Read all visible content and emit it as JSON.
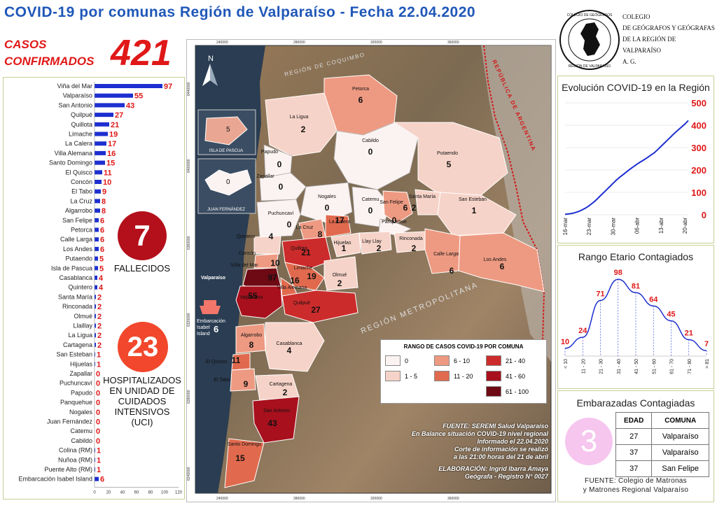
{
  "header": {
    "title": "COVID-19 por comunas Región de Valparaíso - Fecha 22.04.2020",
    "casos_label_1": "CASOS",
    "casos_label_2": "CONFIRMADOS",
    "casos_total": "421"
  },
  "logo": {
    "line1": "COLEGIO",
    "line2": "DE GEÓGRAFOS Y GEÓGRAFAS",
    "line3": "DE LA REGIÓN DE VALPARAÍSO",
    "line4": "A. G.",
    "seal_text": "COLEGIO DE GEÓGRAFOS REGIÓN DE VALPARAÍSO"
  },
  "comunas_bar": {
    "axis_ticks": [
      "0",
      "20",
      "40",
      "60",
      "80",
      "100",
      "120"
    ],
    "max": 120,
    "items": [
      {
        "name": "Viña del Mar",
        "value": 97
      },
      {
        "name": "Valparaíso",
        "value": 55
      },
      {
        "name": "San Antonio",
        "value": 43
      },
      {
        "name": "Quilpué",
        "value": 27
      },
      {
        "name": "Quillota",
        "value": 21
      },
      {
        "name": "Limache",
        "value": 19
      },
      {
        "name": "La Calera",
        "value": 17
      },
      {
        "name": "Villa Alemana",
        "value": 16
      },
      {
        "name": "Santo Domingo",
        "value": 15
      },
      {
        "name": "El Quisco",
        "value": 11
      },
      {
        "name": "Concón",
        "value": 10
      },
      {
        "name": "El Tabo",
        "value": 9
      },
      {
        "name": "La Cruz",
        "value": 8
      },
      {
        "name": "Algarrobo",
        "value": 8
      },
      {
        "name": "San Felipe",
        "value": 6
      },
      {
        "name": "Petorca",
        "value": 6
      },
      {
        "name": "Calle Larga",
        "value": 6
      },
      {
        "name": "Los Andes",
        "value": 6
      },
      {
        "name": "Putaendo",
        "value": 5
      },
      {
        "name": "Isla de Pascua",
        "value": 5
      },
      {
        "name": "Casablanca",
        "value": 4
      },
      {
        "name": "Quintero",
        "value": 4
      },
      {
        "name": "Santa María",
        "value": 2
      },
      {
        "name": "Rinconada",
        "value": 2
      },
      {
        "name": "Olmué",
        "value": 2
      },
      {
        "name": "Llaillay",
        "value": 2
      },
      {
        "name": "La Ligua",
        "value": 2
      },
      {
        "name": "Cartagena",
        "value": 2
      },
      {
        "name": "San Esteban",
        "value": 1
      },
      {
        "name": "Hijuelas",
        "value": 1
      },
      {
        "name": "Zapallar",
        "value": 0
      },
      {
        "name": "Puchuncaví",
        "value": 0
      },
      {
        "name": "Papudo",
        "value": 0
      },
      {
        "name": "Panquehue",
        "value": 0
      },
      {
        "name": "Nogales",
        "value": 0
      },
      {
        "name": "Juan Fernández",
        "value": 0
      },
      {
        "name": "Catemu",
        "value": 0
      },
      {
        "name": "Cabildo",
        "value": 0
      },
      {
        "name": "Colina (RM)",
        "value": 1
      },
      {
        "name": "Nuñoa (RM)",
        "value": 1
      },
      {
        "name": "Puente Alto (RM)",
        "value": 1
      },
      {
        "name": "Embarcación Isabel Island",
        "value": 6
      }
    ]
  },
  "fallecidos": {
    "value": "7",
    "label": "FALLECIDOS"
  },
  "uci": {
    "value": "23",
    "label_1": "HOSPITALIZADOS",
    "label_2": "EN UNIDAD DE",
    "label_3": "CUIDADOS",
    "label_4": "INTENSIVOS",
    "label_5": "(UCI)"
  },
  "map": {
    "legend_title": "RANGO DE CASOS COVID-19 POR COMUNA",
    "legend": [
      {
        "label": "0",
        "color": "#fbf3f1"
      },
      {
        "label": "1 - 5",
        "color": "#f6d3c8"
      },
      {
        "label": "6 - 10",
        "color": "#ee9a82"
      },
      {
        "label": "11 - 20",
        "color": "#e16a4e"
      },
      {
        "label": "21 - 40",
        "color": "#cc2b2b"
      },
      {
        "label": "41 - 60",
        "color": "#a8101d"
      },
      {
        "label": "61 - 100",
        "color": "#6e0a14"
      }
    ],
    "north": "N",
    "inset_pascua": "ISLA DE PASCUA",
    "inset_pascua_value": "5",
    "inset_jf": "JUAN FERNÁNDEZ",
    "inset_jf_value": "0",
    "region_label": "REPÚBLICA DE ARGENTINA",
    "rm_label": "REGIÓN METROPOLITANA",
    "coquimbo_label": "REGIÓN DE COQUIMBO",
    "ship_label_1": "Embarcación",
    "ship_label_2": "Isabel",
    "ship_label_3": "Island",
    "ship_value": "6",
    "top_ticks": [
      "240000",
      "280000",
      "320000",
      "360000"
    ],
    "left_ticks": [
      "6440000",
      "6400000",
      "6360000",
      "6320000",
      "6280000",
      "6240000"
    ],
    "bottom_ticks": [
      "240000",
      "280000",
      "320000",
      "360000"
    ],
    "comunas": [
      {
        "name": "Petorca",
        "value": "6"
      },
      {
        "name": "La Ligua",
        "value": "2"
      },
      {
        "name": "Cabildo",
        "value": "0"
      },
      {
        "name": "Papudo",
        "value": "0"
      },
      {
        "name": "Zapallar",
        "value": "0"
      },
      {
        "name": "Putaendo",
        "value": "5"
      },
      {
        "name": "Nogales",
        "value": "0"
      },
      {
        "name": "Catemu",
        "value": "0"
      },
      {
        "name": "San Felipe",
        "value": "6"
      },
      {
        "name": "Santa María",
        "value": "2"
      },
      {
        "name": "San Esteban",
        "value": "1"
      },
      {
        "name": "Puchuncaví",
        "value": "0"
      },
      {
        "name": "Panquehue",
        "value": "0"
      },
      {
        "name": "Quintero",
        "value": "4"
      },
      {
        "name": "La Cruz",
        "value": "8"
      },
      {
        "name": "La Calera",
        "value": "17"
      },
      {
        "name": "Hijuelas",
        "value": "1"
      },
      {
        "name": "Llay Llay",
        "value": "2"
      },
      {
        "name": "Rinconada",
        "value": "2"
      },
      {
        "name": "Concón",
        "value": "10"
      },
      {
        "name": "Quillota",
        "value": "21"
      },
      {
        "name": "Calle Larga",
        "value": "6"
      },
      {
        "name": "Los Andes",
        "value": "6"
      },
      {
        "name": "Viña del Mar",
        "value": "97"
      },
      {
        "name": "Limache",
        "value": "19"
      },
      {
        "name": "Villa Alemana",
        "value": "16"
      },
      {
        "name": "Olmué",
        "value": "2"
      },
      {
        "name": "Valparaíso",
        "value": "55"
      },
      {
        "name": "Quilpué",
        "value": "27"
      },
      {
        "name": "Algarrobo",
        "value": "8"
      },
      {
        "name": "Casablanca",
        "value": "4"
      },
      {
        "name": "El Quisco",
        "value": "11"
      },
      {
        "name": "El Tabo",
        "value": "9"
      },
      {
        "name": "Cartagena",
        "value": "2"
      },
      {
        "name": "San Antonio",
        "value": "43"
      },
      {
        "name": "Santo Domingo",
        "value": "15"
      }
    ],
    "source_1": "FUENTE: SEREMI Salud Valparaíso",
    "source_2": "En Balance situación COVID-19 nivel regional",
    "source_3": "Informado el 22.04.2020",
    "source_4": "Corte de información se realizó",
    "source_5": "a las 21:00 horas del 21 de abril",
    "elab_1": "ELABORACIÓN: Ingrid Ibarra Amaya",
    "elab_2": "Geógrafa - Registro N° 0027"
  },
  "evolution_chart": {
    "title": "Evolución COVID-19 en la Región",
    "yticks": [
      "500",
      "400",
      "300",
      "200",
      "100",
      "0"
    ],
    "xticks": [
      "16-mar",
      "23-mar",
      "30-mar",
      "06-abr",
      "13-abr",
      "20-abr"
    ],
    "color": "#1d2fd0",
    "y_color": "#e01818"
  },
  "age_chart": {
    "title": "Rango Etario Contagiados",
    "color": "#1d2fd0",
    "value_color": "#e01818"
  },
  "chart_data": [
    {
      "type": "line",
      "title": "Evolución COVID-19 en la Región",
      "xlabel": "",
      "ylabel": "",
      "ylim": [
        0,
        500
      ],
      "x": [
        "16-mar",
        "17-mar",
        "18-mar",
        "19-mar",
        "20-mar",
        "21-mar",
        "22-mar",
        "23-mar",
        "24-mar",
        "25-mar",
        "26-mar",
        "27-mar",
        "28-mar",
        "29-mar",
        "30-mar",
        "31-mar",
        "01-abr",
        "02-abr",
        "03-abr",
        "04-abr",
        "05-abr",
        "06-abr",
        "07-abr",
        "08-abr",
        "09-abr",
        "10-abr",
        "11-abr",
        "12-abr",
        "13-abr",
        "14-abr",
        "15-abr",
        "16-abr",
        "17-abr",
        "18-abr",
        "19-abr",
        "20-abr",
        "21-abr"
      ],
      "series": [
        {
          "values": [
            2,
            4,
            6,
            10,
            15,
            22,
            30,
            40,
            52,
            65,
            80,
            95,
            110,
            125,
            140,
            155,
            168,
            180,
            192,
            204,
            215,
            226,
            236,
            245,
            255,
            266,
            276,
            290,
            305,
            320,
            335,
            350,
            365,
            378,
            392,
            405,
            421
          ]
        }
      ]
    },
    {
      "type": "line",
      "title": "Rango Etario Contagiados",
      "categories": [
        "< 10",
        "11 - 20",
        "21 - 30",
        "31 - 40",
        "41 - 50",
        "51 - 60",
        "61 - 70",
        "71 - 80",
        "> 81"
      ],
      "series": [
        {
          "values": [
            10,
            24,
            71,
            98,
            81,
            64,
            45,
            21,
            7
          ]
        }
      ]
    }
  ],
  "embarazadas": {
    "title": "Embarazadas Contagiadas",
    "value": "3",
    "headers": [
      "EDAD",
      "COMUNA"
    ],
    "rows": [
      [
        "27",
        "Valparaíso"
      ],
      [
        "37",
        "Valparaíso"
      ],
      [
        "37",
        "San Felipe"
      ]
    ],
    "source_1": "FUENTE: Colegio de Matronas",
    "source_2": "y Matrones Regional Valparaíso"
  }
}
